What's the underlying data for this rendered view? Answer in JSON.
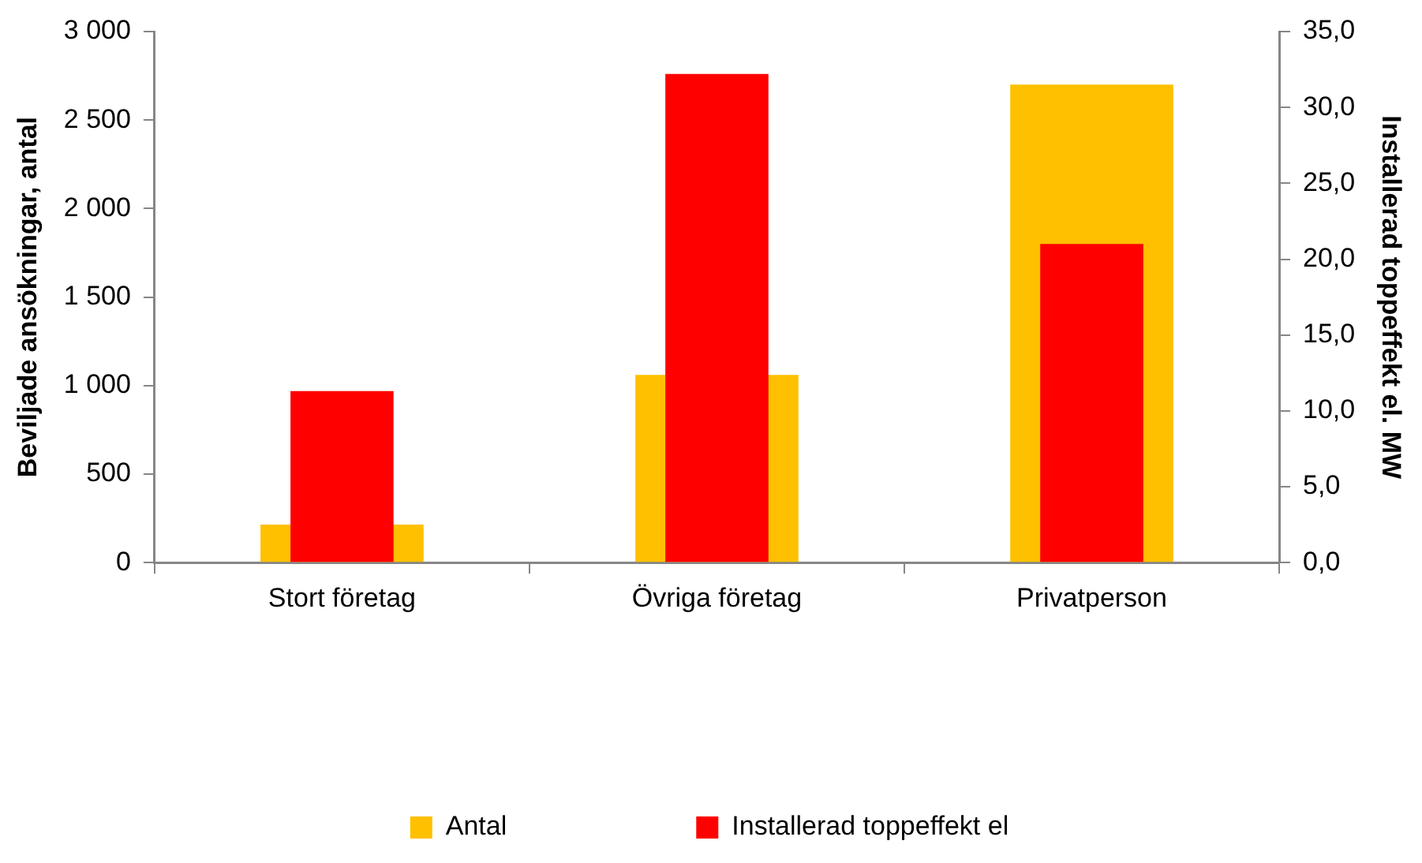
{
  "chart_data": {
    "type": "bar",
    "categories": [
      "Stort företag",
      "Övriga företag",
      "Privatperson"
    ],
    "series": [
      {
        "name": "Antal",
        "color": "#ffc000",
        "values": [
          215,
          1060,
          2700
        ]
      },
      {
        "name": "Installerad toppeffekt el",
        "color": "#ff0000",
        "values": [
          11.3,
          32.2,
          21.0
        ],
        "axis": "y2"
      }
    ],
    "ylabel": "Beviljade ansökningar, antal",
    "y2label": "Installerad toppeffekt el. MW",
    "ylim": [
      0,
      3000
    ],
    "yticks": [
      0,
      500,
      {
        "value": 1000,
        "label": "1 000"
      },
      {
        "value": 1500,
        "label": "1 500"
      },
      {
        "value": 2000,
        "label": "2 000"
      },
      {
        "value": 2500,
        "label": "2 500"
      },
      {
        "value": 3000,
        "label": "3 000"
      }
    ],
    "y2lim": [
      0,
      35
    ],
    "y2ticks": [
      {
        "value": 0,
        "label": "0,0"
      },
      {
        "value": 5,
        "label": "5,0"
      },
      {
        "value": 10,
        "label": "10,0"
      },
      {
        "value": 15,
        "label": "15,0"
      },
      {
        "value": 20,
        "label": "20,0"
      },
      {
        "value": 25,
        "label": "25,0"
      },
      {
        "value": 30,
        "label": "30,0"
      },
      {
        "value": 35,
        "label": "35,0"
      }
    ],
    "grid": false,
    "legend": "bottom"
  }
}
